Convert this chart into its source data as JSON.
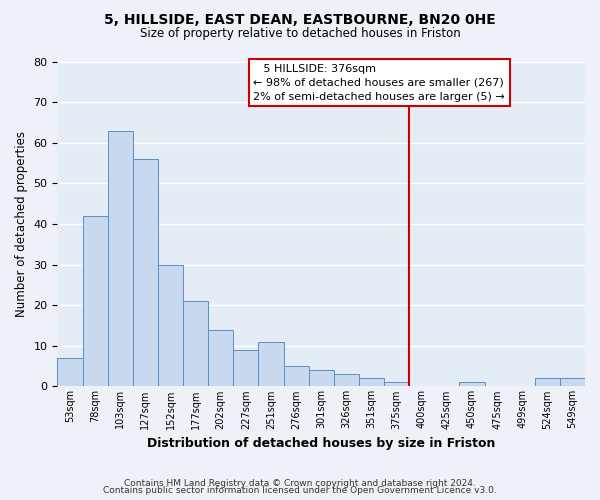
{
  "title": "5, HILLSIDE, EAST DEAN, EASTBOURNE, BN20 0HE",
  "subtitle": "Size of property relative to detached houses in Friston",
  "xlabel": "Distribution of detached houses by size in Friston",
  "ylabel": "Number of detached properties",
  "footer_line1": "Contains HM Land Registry data © Crown copyright and database right 2024.",
  "footer_line2": "Contains public sector information licensed under the Open Government Licence v3.0.",
  "bin_labels": [
    "53sqm",
    "78sqm",
    "103sqm",
    "127sqm",
    "152sqm",
    "177sqm",
    "202sqm",
    "227sqm",
    "251sqm",
    "276sqm",
    "301sqm",
    "326sqm",
    "351sqm",
    "375sqm",
    "400sqm",
    "425sqm",
    "450sqm",
    "475sqm",
    "499sqm",
    "524sqm",
    "549sqm"
  ],
  "bar_heights": [
    7,
    42,
    63,
    56,
    30,
    21,
    14,
    9,
    11,
    5,
    4,
    3,
    2,
    1,
    0,
    0,
    1,
    0,
    0,
    2,
    2
  ],
  "bar_color": "#c8d8ee",
  "bar_edge_color": "#5b8ec4",
  "vline_color": "#cc0000",
  "vline_index": 13.5,
  "annotation_title": "5 HILLSIDE: 376sqm",
  "annotation_line1": "← 98% of detached houses are smaller (267)",
  "annotation_line2": "2% of semi-detached houses are larger (5) →",
  "annotation_box_color": "#cc0000",
  "ylim": [
    0,
    80
  ],
  "yticks": [
    0,
    10,
    20,
    30,
    40,
    50,
    60,
    70,
    80
  ],
  "background_color": "#eef2f8",
  "plot_bg_color": "#e4ecf5",
  "grid_color": "#ffffff",
  "title_fontsize": 10,
  "subtitle_fontsize": 8.5
}
